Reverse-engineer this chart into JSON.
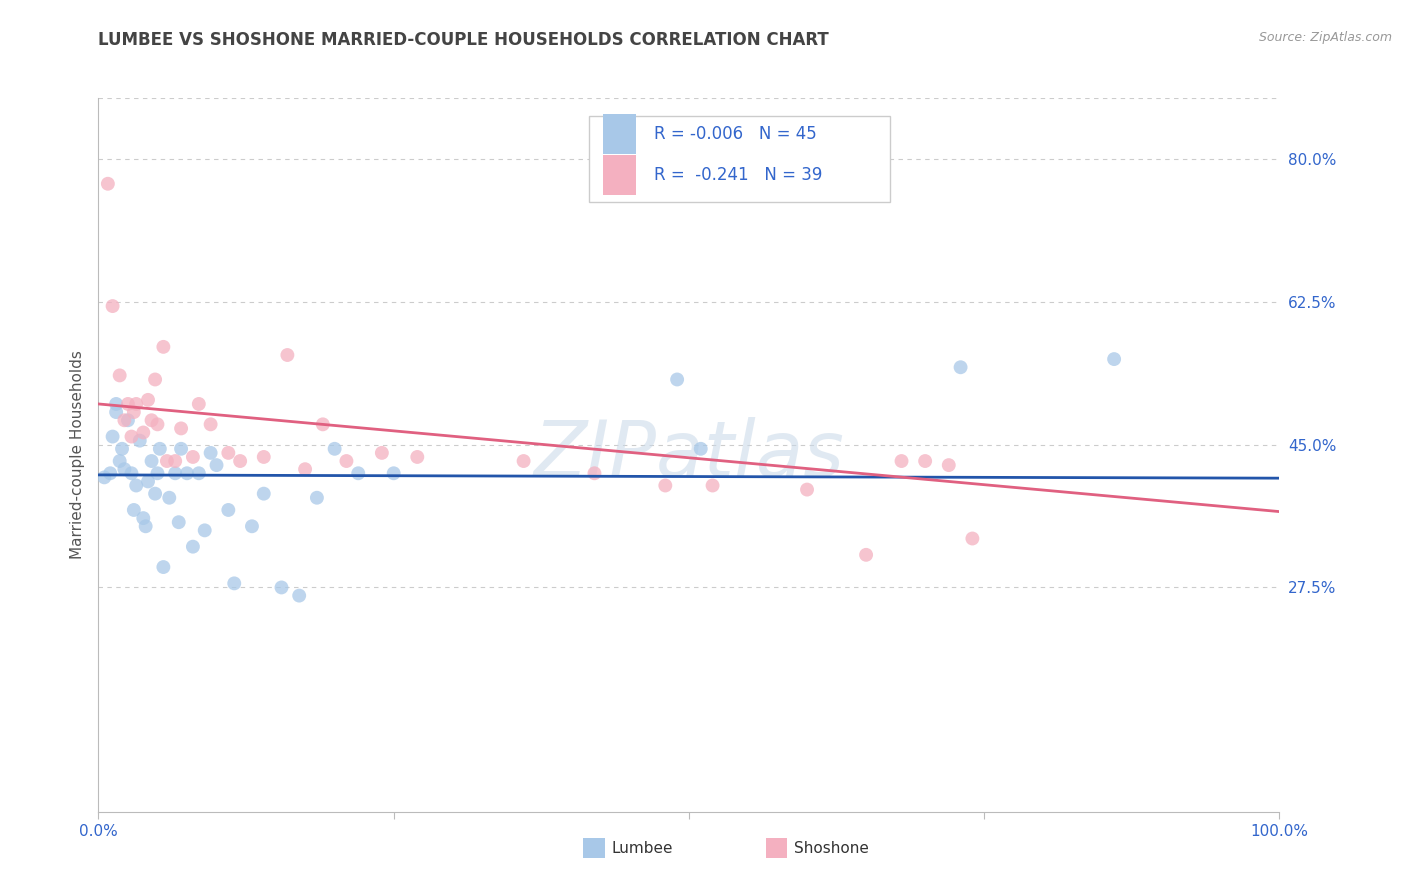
{
  "title": "LUMBEE VS SHOSHONE MARRIED-COUPLE HOUSEHOLDS CORRELATION CHART",
  "source": "Source: ZipAtlas.com",
  "ylabel": "Married-couple Households",
  "watermark": "ZIPatlas",
  "legend_blue_R": "-0.006",
  "legend_blue_N": "45",
  "legend_pink_R": "-0.241",
  "legend_pink_N": "39",
  "legend_blue_label": "Lumbee",
  "legend_pink_label": "Shoshone",
  "xlim": [
    0.0,
    1.0
  ],
  "ylim": [
    0.0,
    0.875
  ],
  "ytick_vals": [
    0.275,
    0.45,
    0.625,
    0.8
  ],
  "ytick_labels": [
    "27.5%",
    "45.0%",
    "62.5%",
    "80.0%"
  ],
  "blue_color": "#a8c8e8",
  "pink_color": "#f4b0c0",
  "blue_line_color": "#2255aa",
  "pink_line_color": "#e06080",
  "grid_color": "#cccccc",
  "background_color": "#ffffff",
  "title_color": "#444444",
  "lumbee_x": [
    0.005,
    0.01,
    0.012,
    0.015,
    0.015,
    0.018,
    0.02,
    0.022,
    0.025,
    0.028,
    0.03,
    0.032,
    0.035,
    0.038,
    0.04,
    0.042,
    0.045,
    0.048,
    0.05,
    0.052,
    0.055,
    0.06,
    0.065,
    0.068,
    0.07,
    0.075,
    0.08,
    0.085,
    0.09,
    0.095,
    0.1,
    0.11,
    0.115,
    0.13,
    0.14,
    0.155,
    0.17,
    0.185,
    0.2,
    0.22,
    0.25,
    0.49,
    0.51,
    0.73,
    0.86
  ],
  "lumbee_y": [
    0.41,
    0.415,
    0.46,
    0.49,
    0.5,
    0.43,
    0.445,
    0.42,
    0.48,
    0.415,
    0.37,
    0.4,
    0.455,
    0.36,
    0.35,
    0.405,
    0.43,
    0.39,
    0.415,
    0.445,
    0.3,
    0.385,
    0.415,
    0.355,
    0.445,
    0.415,
    0.325,
    0.415,
    0.345,
    0.44,
    0.425,
    0.37,
    0.28,
    0.35,
    0.39,
    0.275,
    0.265,
    0.385,
    0.445,
    0.415,
    0.415,
    0.53,
    0.445,
    0.545,
    0.555
  ],
  "shoshone_x": [
    0.008,
    0.012,
    0.018,
    0.022,
    0.025,
    0.028,
    0.03,
    0.032,
    0.038,
    0.042,
    0.045,
    0.048,
    0.05,
    0.055,
    0.058,
    0.065,
    0.07,
    0.08,
    0.085,
    0.095,
    0.11,
    0.12,
    0.14,
    0.16,
    0.175,
    0.19,
    0.21,
    0.24,
    0.27,
    0.36,
    0.42,
    0.48,
    0.52,
    0.6,
    0.65,
    0.68,
    0.7,
    0.72,
    0.74
  ],
  "shoshone_y": [
    0.77,
    0.62,
    0.535,
    0.48,
    0.5,
    0.46,
    0.49,
    0.5,
    0.465,
    0.505,
    0.48,
    0.53,
    0.475,
    0.57,
    0.43,
    0.43,
    0.47,
    0.435,
    0.5,
    0.475,
    0.44,
    0.43,
    0.435,
    0.56,
    0.42,
    0.475,
    0.43,
    0.44,
    0.435,
    0.43,
    0.415,
    0.4,
    0.4,
    0.395,
    0.315,
    0.43,
    0.43,
    0.425,
    0.335
  ],
  "blue_trend_x": [
    0.0,
    1.0
  ],
  "blue_trend_y": [
    0.413,
    0.409
  ],
  "pink_trend_x": [
    0.0,
    1.0
  ],
  "pink_trend_y": [
    0.5,
    0.368
  ],
  "marker_size": 100
}
